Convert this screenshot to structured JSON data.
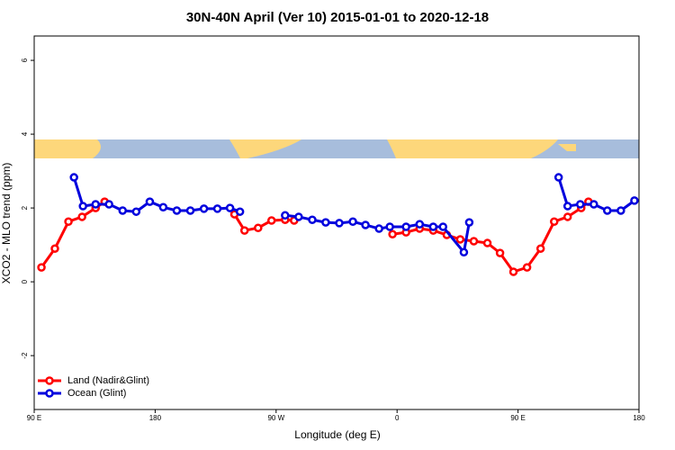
{
  "chart_data": {
    "type": "line",
    "title": "30N-40N April (Ver 10)   2015-01-01 to 2020-12-18",
    "xlabel": "Longitude (deg E)",
    "ylabel": "XCO2 - MLO trend (ppm)",
    "xlim": [
      90,
      540
    ],
    "ylim": [
      -3.46,
      6.66
    ],
    "xticks": [
      {
        "value": 90,
        "label": "90 E"
      },
      180,
      {
        "value": 270,
        "label": "90 W"
      },
      {
        "value": 360,
        "label": "0"
      },
      {
        "value": 450,
        "label": "90 E"
      },
      {
        "value": 540,
        "label": "180"
      }
    ],
    "yticks": [
      -2,
      0,
      2,
      4,
      6
    ],
    "legend": "bottom-left",
    "series": [
      {
        "name": "Land (Nadir&Glint)",
        "color": "#ff0000",
        "x": [
          95.4,
          105.4,
          115.5,
          125.6,
          135.7,
          142.4,
          null,
          239,
          246.5,
          256.6,
          266.6,
          276.7,
          283.4,
          null,
          356.6,
          366.7,
          376.8,
          386.9,
          397,
          407,
          417.1,
          427.2,
          436.6,
          446.6,
          456.7,
          466.8,
          476.9,
          486.9,
          497,
          502.4
        ],
        "values": [
          0.39,
          0.9,
          1.63,
          1.76,
          2.0,
          2.17,
          null,
          1.83,
          1.39,
          1.46,
          1.66,
          1.68,
          1.66,
          null,
          1.29,
          1.34,
          1.44,
          1.39,
          1.27,
          1.15,
          1.1,
          1.05,
          0.78,
          0.27,
          0.39,
          0.9,
          1.63,
          1.76,
          2.0,
          2.17
        ]
      },
      {
        "name": "Ocean (Glint)",
        "color": "#0000dd",
        "x": [
          119.6,
          126.3,
          135.7,
          145.7,
          155.8,
          165.9,
          176,
          186,
          196.1,
          206.2,
          216.3,
          226.3,
          235.7,
          243.1,
          null,
          276.7,
          286.8,
          296.9,
          306.9,
          317,
          327.1,
          336.5,
          346.6,
          354.6,
          366.7,
          376.8,
          386.9,
          394.2,
          409.7,
          413.7,
          null,
          480.2,
          486.9,
          496.3,
          506.4,
          516.4,
          526.5,
          536.6
        ],
        "values": [
          2.83,
          2.05,
          2.1,
          2.1,
          1.93,
          1.9,
          2.17,
          2.02,
          1.93,
          1.93,
          1.98,
          1.98,
          2.0,
          1.9,
          null,
          1.8,
          1.76,
          1.68,
          1.61,
          1.59,
          1.63,
          1.54,
          1.44,
          1.49,
          1.49,
          1.56,
          1.49,
          1.49,
          0.8,
          1.61,
          null,
          2.83,
          2.05,
          2.1,
          2.1,
          1.93,
          1.93,
          2.2
        ]
      }
    ]
  }
}
